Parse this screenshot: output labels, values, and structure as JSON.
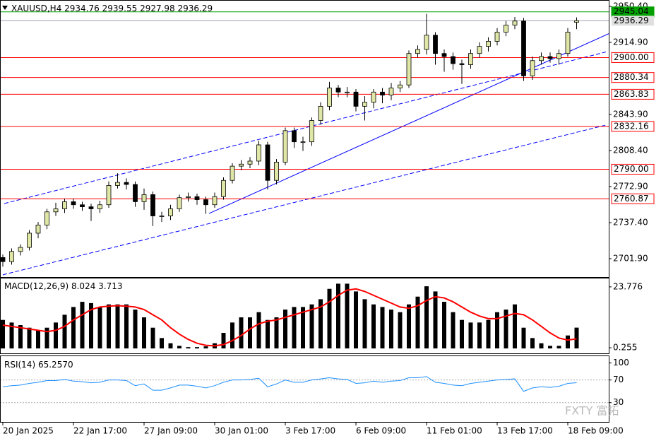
{
  "chart_data": [
    {
      "type": "candlestick",
      "title": "XAUUSD,H4",
      "x": [
        "20 Jan 2025",
        null,
        null,
        null,
        null,
        null,
        null,
        null,
        "22 Jan 17:00",
        null,
        null,
        null,
        null,
        null,
        null,
        null,
        "27 Jan 09:00",
        null,
        null,
        null,
        null,
        null,
        null,
        null,
        "30 Jan 01:00",
        null,
        null,
        null,
        null,
        null,
        null,
        null,
        "3 Feb 17:00",
        null,
        null,
        null,
        null,
        null,
        null,
        null,
        "6 Feb 09:00",
        null,
        null,
        null,
        null,
        null,
        null,
        null,
        "11 Feb 01:00",
        null,
        null,
        null,
        null,
        null,
        null,
        null,
        "13 Feb 17:00",
        null,
        null,
        null,
        null,
        null,
        null,
        null,
        "18 Feb 09:00",
        null
      ],
      "open": [
        2703,
        2699,
        2709,
        2713,
        2727,
        2735,
        2748,
        2751,
        2758,
        2755,
        2753,
        2751,
        2755,
        2774,
        2777,
        2775,
        2758,
        2765,
        2744,
        2744,
        2751,
        2762,
        2763,
        2760,
        2755,
        2763,
        2779,
        2793,
        2795,
        2798,
        2814,
        2779,
        2797,
        2828,
        2817,
        2817,
        2838,
        2852,
        2870,
        2866,
        2866,
        2852,
        2856,
        2866,
        2863,
        2870,
        2873,
        2904,
        2908,
        2922,
        2904,
        2901,
        2894,
        2893,
        2904,
        2911,
        2916,
        2925,
        2932,
        2936,
        2882,
        2897,
        2901,
        2899,
        2904,
        2934.76
      ],
      "high": [
        2706,
        2712,
        2716,
        2730,
        2738,
        2751,
        2757,
        2761,
        2761,
        2758,
        2756,
        2759,
        2778,
        2786,
        2781,
        2778,
        2771,
        2768,
        2748,
        2755,
        2765,
        2767,
        2766,
        2763,
        2767,
        2782,
        2796,
        2799,
        2802,
        2818,
        2817,
        2800,
        2831,
        2831,
        2822,
        2841,
        2856,
        2876,
        2873,
        2871,
        2869,
        2862,
        2869,
        2870,
        2875,
        2877,
        2907,
        2912,
        2943,
        2925,
        2908,
        2905,
        2898,
        2908,
        2915,
        2920,
        2929,
        2936,
        2940,
        2939,
        2901,
        2905,
        2905,
        2908,
        2929,
        2939.55
      ],
      "low": [
        2694,
        2696,
        2705,
        2710,
        2722,
        2731,
        2744,
        2747,
        2751,
        2749,
        2739,
        2747,
        2752,
        2771,
        2770,
        2753,
        2750,
        2734,
        2738,
        2740,
        2748,
        2758,
        2755,
        2746,
        2752,
        2760,
        2776,
        2789,
        2791,
        2794,
        2770,
        2775,
        2794,
        2811,
        2808,
        2813,
        2834,
        2848,
        2861,
        2861,
        2847,
        2838,
        2850,
        2855,
        2858,
        2866,
        2870,
        2900,
        2903,
        2893,
        2886,
        2888,
        2874,
        2889,
        2900,
        2906,
        2912,
        2921,
        2928,
        2877,
        2878,
        2893,
        2895,
        2893,
        2901,
        2927.98
      ],
      "close": [
        2699,
        2709,
        2713,
        2727,
        2735,
        2748,
        2751,
        2758,
        2755,
        2753,
        2751,
        2755,
        2774,
        2777,
        2775,
        2758,
        2765,
        2744,
        2744,
        2751,
        2762,
        2763,
        2760,
        2755,
        2763,
        2779,
        2793,
        2795,
        2798,
        2814,
        2779,
        2797,
        2828,
        2817,
        2817,
        2838,
        2852,
        2870,
        2866,
        2866,
        2852,
        2856,
        2866,
        2863,
        2870,
        2873,
        2904,
        2908,
        2922,
        2904,
        2901,
        2894,
        2893,
        2904,
        2911,
        2916,
        2925,
        2932,
        2936,
        2882,
        2897,
        2901,
        2899,
        2904,
        2925,
        2936.29
      ],
      "up_color": "#dfe6a6",
      "down_color": "#000000",
      "ylim": [
        2683.8,
        2956.7
      ],
      "yticks": [
        {
          "value": 2950.4,
          "label": "2950.40"
        },
        {
          "value": 2914.9,
          "label": "2914.90"
        },
        {
          "value": 2843.9,
          "label": "2843.90"
        },
        {
          "value": 2808.4,
          "label": "2808.40"
        },
        {
          "value": 2772.9,
          "label": "2772.90"
        },
        {
          "value": 2737.4,
          "label": "2737.40"
        },
        {
          "value": 2701.9,
          "label": "2701.90"
        }
      ],
      "levels": [
        {
          "value": 2945.04,
          "color": "#00a000"
        },
        {
          "value": 2900,
          "label": "2900.00",
          "color": "#ff0000"
        },
        {
          "value": 2880.34,
          "color": "#ff0000"
        },
        {
          "value": 2863.83,
          "color": "#ff0000"
        },
        {
          "value": 2832.16,
          "color": "#ff0000"
        },
        {
          "value": 2790,
          "label": "2790.00",
          "color": "#ff0000"
        },
        {
          "value": 2760.87,
          "color": "#ff0000"
        }
      ],
      "trendlines": [
        {
          "x": [
            23.36,
            68.72
          ],
          "y": [
            2746.4,
            2923.8
          ],
          "dashed": false,
          "color": "#0000ff"
        },
        {
          "x": [
            0.16,
            68.32
          ],
          "y": [
            2756.2,
            2905.5
          ],
          "dashed": true,
          "color": "#0000ff"
        },
        {
          "x": [
            0,
            68.32
          ],
          "y": [
            2686,
            2833.5
          ],
          "dashed": true,
          "color": "#0000ff"
        }
      ]
    },
    {
      "type": "macd",
      "title": "MACD(12,26,9)",
      "histogram": {
        "color": "#000000",
        "values": [
          11,
          10,
          9,
          8,
          7,
          8,
          10,
          13,
          16,
          18,
          17.5,
          16,
          17,
          17,
          17,
          15,
          12,
          8,
          4,
          2,
          1,
          0.5,
          0.5,
          0.8,
          2,
          6,
          10,
          12,
          12,
          14,
          11,
          12,
          15,
          16,
          16,
          17,
          19,
          23,
          25,
          25,
          22,
          19,
          17,
          16,
          15,
          14,
          17,
          20,
          24,
          22,
          18,
          14,
          11,
          10,
          10,
          11,
          14,
          15,
          17,
          8,
          4,
          2,
          1,
          1,
          5,
          8.024
        ]
      },
      "signal": {
        "color": "#ff0000",
        "values": [
          9,
          8.5,
          8,
          7.5,
          7,
          6.5,
          7,
          8.5,
          11,
          13,
          15,
          16,
          16.3,
          16.5,
          16.3,
          16,
          15,
          13,
          11,
          8,
          5.5,
          3.5,
          2,
          1.2,
          1,
          1.5,
          3,
          5,
          7.5,
          9.5,
          10.5,
          11,
          12,
          13,
          14,
          15,
          16,
          18,
          20.5,
          22.5,
          23,
          22,
          20.5,
          19,
          17.5,
          16,
          15.5,
          16.5,
          18.5,
          20,
          19.5,
          18,
          16,
          14,
          12.5,
          11.5,
          11.5,
          12.5,
          13.5,
          13,
          11,
          8.5,
          6,
          4,
          3.2,
          3.713
        ]
      },
      "ylim": [
        -1.91,
        27.02
      ],
      "yticks": [
        23.776,
        0.255
      ]
    },
    {
      "type": "rsi",
      "title": "RSI(14)",
      "current_label": "65.2570",
      "color": "#1e90ff",
      "values": [
        58,
        60,
        61,
        64,
        66,
        69,
        69,
        71,
        68,
        67,
        65,
        66,
        70,
        70,
        69,
        60,
        63,
        52,
        52,
        56,
        61,
        61,
        59,
        56,
        60,
        66,
        70,
        70,
        71,
        73,
        58,
        63,
        70,
        66,
        66,
        70,
        72,
        74,
        72,
        71,
        64,
        65,
        68,
        66,
        68,
        69,
        74,
        74,
        76,
        66,
        64,
        61,
        60,
        64,
        66,
        68,
        70,
        71,
        72,
        50,
        56,
        58,
        57,
        59,
        64,
        65.257
      ],
      "ylim": [
        -4,
        112
      ],
      "yticks": [
        100,
        70,
        30
      ],
      "levels": [
        70,
        30
      ]
    }
  ],
  "watermark": "FXTY 富拓"
}
